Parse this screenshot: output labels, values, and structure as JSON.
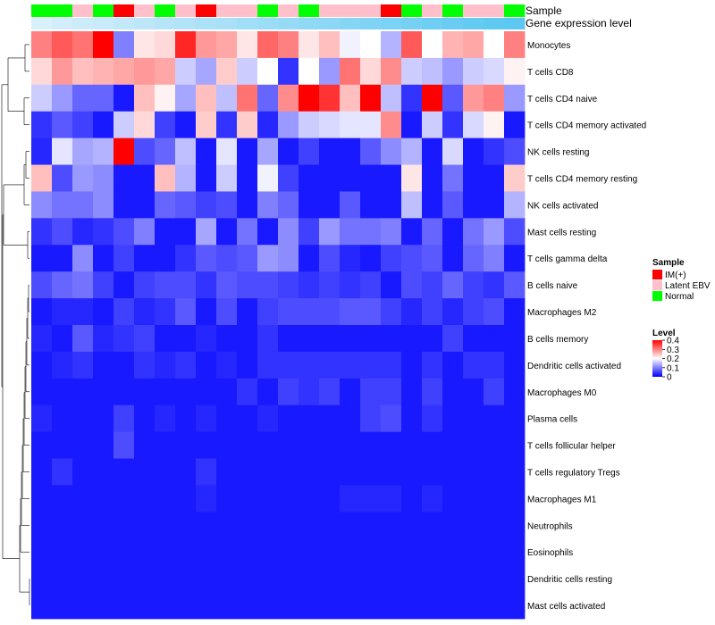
{
  "chart_data": {
    "type": "heatmap",
    "title": "",
    "annotation_labels": {
      "sample": "Sample",
      "gene_expression": "Gene expression level"
    },
    "sample_annotation": [
      "Normal",
      "Normal",
      "Latent EBV",
      "Normal",
      "IM(+)",
      "Latent EBV",
      "Normal",
      "Latent EBV",
      "IM(+)",
      "Latent EBV",
      "Latent EBV",
      "Normal",
      "Latent EBV",
      "Normal",
      "Latent EBV",
      "Latent EBV",
      "Latent EBV",
      "IM(+)",
      "Normal",
      "Latent EBV",
      "Normal",
      "Latent EBV",
      "Latent EBV",
      "Normal"
    ],
    "gene_expression_annotation": [
      0.1,
      0.14,
      0.18,
      0.22,
      0.26,
      0.3,
      0.34,
      0.38,
      0.42,
      0.46,
      0.5,
      0.54,
      0.58,
      0.62,
      0.66,
      0.7,
      0.74,
      0.78,
      0.82,
      0.86,
      0.9,
      0.94,
      0.97,
      1.0
    ],
    "rows": [
      "Monocytes",
      "T cells CD8",
      "T cells CD4 naive",
      "T cells CD4 memory activated",
      "NK cells resting",
      "T cells CD4 memory resting",
      "NK cells activated",
      "Mast cells resting",
      "T cells gamma delta",
      "B cells naive",
      "Macrophages M2",
      "B cells memory",
      "Dendritic cells activated",
      "Macrophages M0",
      "Plasma cells",
      "T cells follicular helper",
      "T cells regulatory  Tregs",
      "Macrophages M1",
      "Neutrophils",
      "Eosinophils",
      "Dendritic cells resting",
      "Mast cells activated"
    ],
    "values": [
      [
        0.3,
        0.33,
        0.31,
        0.4,
        0.1,
        0.22,
        0.23,
        0.37,
        0.28,
        0.27,
        0.22,
        0.32,
        0.3,
        0.22,
        0.25,
        0.19,
        0.2,
        0.14,
        0.33,
        0.2,
        0.26,
        0.27,
        0.2,
        0.3
      ],
      [
        0.23,
        0.28,
        0.25,
        0.26,
        0.27,
        0.28,
        0.27,
        0.16,
        0.13,
        0.24,
        0.16,
        0.2,
        0.04,
        0.2,
        0.12,
        0.31,
        0.23,
        0.29,
        0.16,
        0.15,
        0.12,
        0.16,
        0.17,
        0.21
      ],
      [
        0.16,
        0.12,
        0.08,
        0.08,
        0.02,
        0.25,
        0.21,
        0.13,
        0.25,
        0.15,
        0.31,
        0.08,
        0.29,
        0.4,
        0.36,
        0.25,
        0.4,
        0.15,
        0.04,
        0.4,
        0.07,
        0.28,
        0.3,
        0.12
      ],
      [
        0.04,
        0.07,
        0.05,
        0.02,
        0.16,
        0.23,
        0.05,
        0.02,
        0.24,
        0.04,
        0.24,
        0.03,
        0.12,
        0.16,
        0.17,
        0.18,
        0.18,
        0.29,
        0.02,
        0.16,
        0.04,
        0.17,
        0.21,
        0.02
      ],
      [
        0.03,
        0.18,
        0.13,
        0.14,
        0.4,
        0.06,
        0.08,
        0.15,
        0.02,
        0.18,
        0.02,
        0.13,
        0.02,
        0.05,
        0.02,
        0.02,
        0.07,
        0.11,
        0.14,
        0.02,
        0.17,
        0.02,
        0.04,
        0.06
      ],
      [
        0.25,
        0.06,
        0.12,
        0.11,
        0.02,
        0.02,
        0.25,
        0.14,
        0.02,
        0.16,
        0.02,
        0.19,
        0.05,
        0.02,
        0.02,
        0.02,
        0.02,
        0.02,
        0.22,
        0.02,
        0.09,
        0.02,
        0.02,
        0.24
      ],
      [
        0.11,
        0.09,
        0.09,
        0.11,
        0.02,
        0.02,
        0.08,
        0.07,
        0.05,
        0.06,
        0.02,
        0.1,
        0.08,
        0.02,
        0.02,
        0.07,
        0.02,
        0.02,
        0.15,
        0.02,
        0.07,
        0.02,
        0.02,
        0.14
      ],
      [
        0.04,
        0.06,
        0.03,
        0.04,
        0.06,
        0.1,
        0.02,
        0.02,
        0.13,
        0.02,
        0.09,
        0.02,
        0.11,
        0.05,
        0.12,
        0.09,
        0.09,
        0.1,
        0.02,
        0.08,
        0.02,
        0.09,
        0.12,
        0.06
      ],
      [
        0.02,
        0.02,
        0.11,
        0.02,
        0.05,
        0.02,
        0.02,
        0.04,
        0.07,
        0.06,
        0.07,
        0.12,
        0.11,
        0.02,
        0.06,
        0.03,
        0.02,
        0.05,
        0.06,
        0.07,
        0.02,
        0.08,
        0.1,
        0.02
      ],
      [
        0.06,
        0.08,
        0.09,
        0.05,
        0.02,
        0.05,
        0.06,
        0.06,
        0.04,
        0.07,
        0.06,
        0.06,
        0.05,
        0.04,
        0.05,
        0.04,
        0.05,
        0.02,
        0.06,
        0.05,
        0.08,
        0.05,
        0.04,
        0.07
      ],
      [
        0.02,
        0.03,
        0.03,
        0.02,
        0.05,
        0.03,
        0.04,
        0.07,
        0.02,
        0.06,
        0.02,
        0.05,
        0.06,
        0.06,
        0.06,
        0.07,
        0.07,
        0.05,
        0.03,
        0.05,
        0.03,
        0.05,
        0.06,
        0.02
      ],
      [
        0.03,
        0.02,
        0.07,
        0.03,
        0.04,
        0.05,
        0.02,
        0.02,
        0.03,
        0.02,
        0.02,
        0.04,
        0.02,
        0.02,
        0.02,
        0.02,
        0.02,
        0.02,
        0.02,
        0.02,
        0.05,
        0.02,
        0.02,
        0.02
      ],
      [
        0.02,
        0.03,
        0.04,
        0.02,
        0.02,
        0.04,
        0.03,
        0.04,
        0.02,
        0.03,
        0.02,
        0.04,
        0.04,
        0.04,
        0.04,
        0.04,
        0.04,
        0.04,
        0.02,
        0.04,
        0.02,
        0.04,
        0.04,
        0.02
      ],
      [
        0.02,
        0.02,
        0.02,
        0.02,
        0.02,
        0.02,
        0.02,
        0.02,
        0.02,
        0.02,
        0.04,
        0.02,
        0.05,
        0.04,
        0.05,
        0.02,
        0.05,
        0.05,
        0.02,
        0.05,
        0.02,
        0.02,
        0.05,
        0.02
      ],
      [
        0.03,
        0.02,
        0.02,
        0.02,
        0.05,
        0.02,
        0.03,
        0.02,
        0.03,
        0.02,
        0.02,
        0.03,
        0.02,
        0.02,
        0.02,
        0.02,
        0.05,
        0.06,
        0.02,
        0.04,
        0.02,
        0.02,
        0.02,
        0.02
      ],
      [
        0.02,
        0.02,
        0.02,
        0.02,
        0.06,
        0.02,
        0.02,
        0.02,
        0.02,
        0.02,
        0.02,
        0.02,
        0.02,
        0.02,
        0.02,
        0.02,
        0.02,
        0.02,
        0.02,
        0.02,
        0.02,
        0.02,
        0.02,
        0.02
      ],
      [
        0.02,
        0.04,
        0.02,
        0.02,
        0.02,
        0.02,
        0.02,
        0.02,
        0.04,
        0.02,
        0.02,
        0.02,
        0.02,
        0.02,
        0.02,
        0.02,
        0.02,
        0.02,
        0.02,
        0.02,
        0.02,
        0.02,
        0.02,
        0.02
      ],
      [
        0.02,
        0.02,
        0.02,
        0.02,
        0.02,
        0.02,
        0.02,
        0.02,
        0.03,
        0.02,
        0.02,
        0.02,
        0.02,
        0.02,
        0.02,
        0.03,
        0.03,
        0.03,
        0.02,
        0.03,
        0.02,
        0.02,
        0.02,
        0.02
      ],
      [
        0.02,
        0.02,
        0.02,
        0.02,
        0.02,
        0.02,
        0.02,
        0.02,
        0.02,
        0.02,
        0.02,
        0.02,
        0.02,
        0.02,
        0.02,
        0.02,
        0.02,
        0.02,
        0.02,
        0.02,
        0.02,
        0.02,
        0.02,
        0.02
      ],
      [
        0.02,
        0.02,
        0.02,
        0.02,
        0.02,
        0.02,
        0.02,
        0.02,
        0.02,
        0.02,
        0.02,
        0.02,
        0.02,
        0.02,
        0.02,
        0.02,
        0.02,
        0.02,
        0.02,
        0.02,
        0.02,
        0.02,
        0.02,
        0.02
      ],
      [
        0.02,
        0.02,
        0.02,
        0.02,
        0.02,
        0.02,
        0.02,
        0.02,
        0.02,
        0.02,
        0.02,
        0.02,
        0.02,
        0.02,
        0.02,
        0.02,
        0.02,
        0.02,
        0.02,
        0.02,
        0.02,
        0.02,
        0.02,
        0.02
      ],
      [
        0.02,
        0.02,
        0.02,
        0.02,
        0.02,
        0.02,
        0.02,
        0.02,
        0.02,
        0.02,
        0.02,
        0.02,
        0.02,
        0.02,
        0.02,
        0.02,
        0.02,
        0.02,
        0.02,
        0.02,
        0.02,
        0.02,
        0.02,
        0.02
      ]
    ],
    "color_scale": {
      "min": 0,
      "mid": 0.2,
      "max": 0.4,
      "low": "#0000ff",
      "mid_color": "#ffffff",
      "high": "#ff0000",
      "ticks": [
        0,
        0.1,
        0.2,
        0.3,
        0.4
      ]
    },
    "legends": {
      "sample": {
        "title": "Sample",
        "items": [
          {
            "label": "IM(+)",
            "color": "#ff0000"
          },
          {
            "label": "Latent EBV",
            "color": "#ffc0cb"
          },
          {
            "label": "Normal",
            "color": "#00ff00"
          }
        ]
      },
      "level": {
        "title": "Level",
        "tick_labels": [
          "0.4",
          "0.3",
          "0.2",
          "0.1",
          "0"
        ]
      }
    },
    "gene_expression_colors": {
      "low": "#e6f4fb",
      "high": "#5cc8f2"
    },
    "dendrogram": "row-clustering"
  }
}
